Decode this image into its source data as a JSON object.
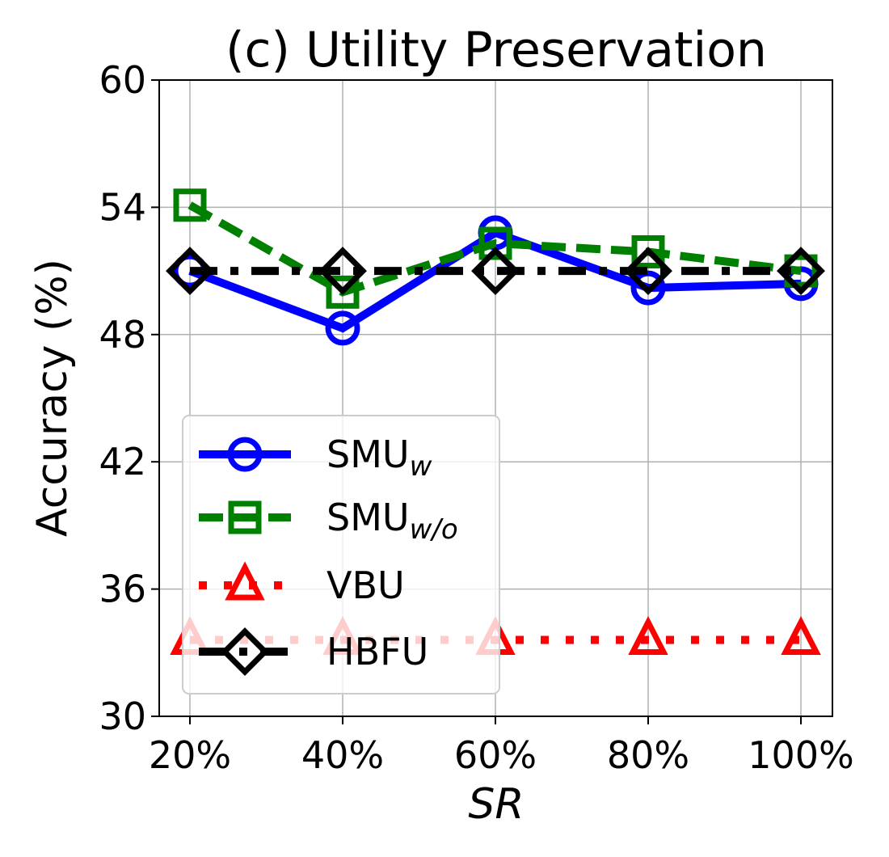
{
  "chart_data": {
    "type": "line",
    "title": "(c) Utility Preservation",
    "xlabel": "SR",
    "ylabel": "Accuracy (%)",
    "categories": [
      "20%",
      "40%",
      "60%",
      "80%",
      "100%"
    ],
    "ylim": [
      30,
      60
    ],
    "yticks": [
      30,
      36,
      42,
      48,
      54,
      60
    ],
    "ytick_labels": [
      "30",
      "36",
      "42",
      "48",
      "54",
      "60"
    ],
    "grid": true,
    "legend_position": "lower-left",
    "series": [
      {
        "name": "SMU",
        "name_sub": "w",
        "values": [
          51.0,
          48.3,
          52.8,
          50.2,
          50.4
        ],
        "color": "#0000ff",
        "marker": "circle",
        "linestyle": "solid"
      },
      {
        "name": "SMU",
        "name_sub": "w/o",
        "values": [
          54.1,
          50.0,
          52.3,
          51.9,
          51.0
        ],
        "color": "#008000",
        "marker": "square",
        "linestyle": "dashed"
      },
      {
        "name": "VBU",
        "values": [
          33.6,
          33.6,
          33.6,
          33.6,
          33.6
        ],
        "color": "#ff0000",
        "marker": "triangle",
        "linestyle": "dotted"
      },
      {
        "name": "HBFU",
        "values": [
          51.0,
          51.0,
          51.0,
          51.0,
          51.0
        ],
        "color": "#000000",
        "marker": "diamond",
        "linestyle": "dashdot"
      }
    ]
  }
}
